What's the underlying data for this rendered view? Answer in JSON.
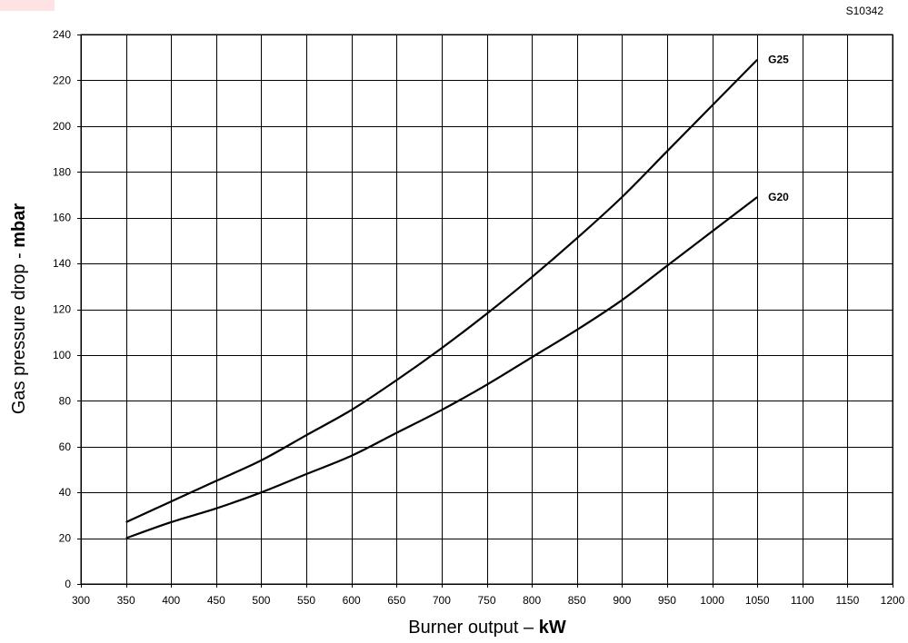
{
  "figure": {
    "reference_code": "S10342",
    "corner_mark_color": "#fde3e3"
  },
  "chart_data": {
    "type": "line",
    "xlabel_text": "Burner output – ",
    "xlabel_unit": "kW",
    "ylabel_text": "Gas pressure drop - ",
    "ylabel_unit": "mbar",
    "xlim": [
      300,
      1200
    ],
    "ylim": [
      0,
      240
    ],
    "x_ticks": [
      300,
      350,
      400,
      450,
      500,
      550,
      600,
      650,
      700,
      750,
      800,
      850,
      900,
      950,
      1000,
      1050,
      1100,
      1150,
      1200
    ],
    "y_ticks": [
      0,
      20,
      40,
      60,
      80,
      100,
      120,
      140,
      160,
      180,
      200,
      220,
      240
    ],
    "grid": true,
    "line_color": "#000000",
    "series": [
      {
        "name": "G25",
        "x": [
          350,
          400,
          450,
          500,
          550,
          600,
          650,
          700,
          750,
          800,
          850,
          900,
          950,
          1000,
          1050
        ],
        "y": [
          27,
          36,
          45,
          54,
          65,
          76,
          89,
          103,
          118,
          134,
          151,
          169,
          189,
          209,
          229
        ]
      },
      {
        "name": "G20",
        "x": [
          350,
          400,
          450,
          500,
          550,
          600,
          650,
          700,
          750,
          800,
          850,
          900,
          950,
          1000,
          1050
        ],
        "y": [
          20,
          27,
          33,
          40,
          48,
          56,
          66,
          76,
          87,
          99,
          111,
          124,
          139,
          154,
          169
        ]
      }
    ]
  }
}
